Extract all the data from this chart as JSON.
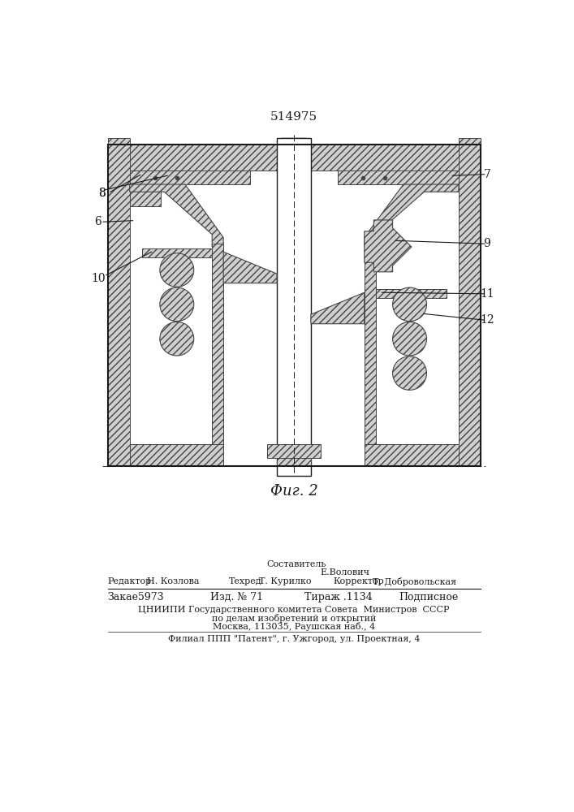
{
  "patent_number": "514975",
  "fig_label": "Фиг. 2",
  "footer": {
    "sostavitel_label": "Составитель",
    "sostavitel_name": "Е.Волович",
    "redaktor_label": "Редактор",
    "redaktor_name": "Н. Козлова",
    "tekhred_label": "Техред",
    "tekhred_name": "Т. Курилко",
    "korrektor_label": "Корректор",
    "korrektor_name": "Т. Добровольская",
    "zakaz": "Закае5973",
    "izd": "Изд. № 71",
    "tirazh": "Тираж .1134",
    "podpisnoe": "Подписное",
    "tsnipi_line1": "ЦНИИПИ Государственного комитета Совета  Министров  СССР",
    "tsnipi_line2": "по делам изобретений и открытий",
    "tsnipi_line3": "Москва, 113035, Раушская наб., 4",
    "filial": "Филиал ППП \"Патент\", г. Ужгород, ул. Проектная, 4"
  }
}
